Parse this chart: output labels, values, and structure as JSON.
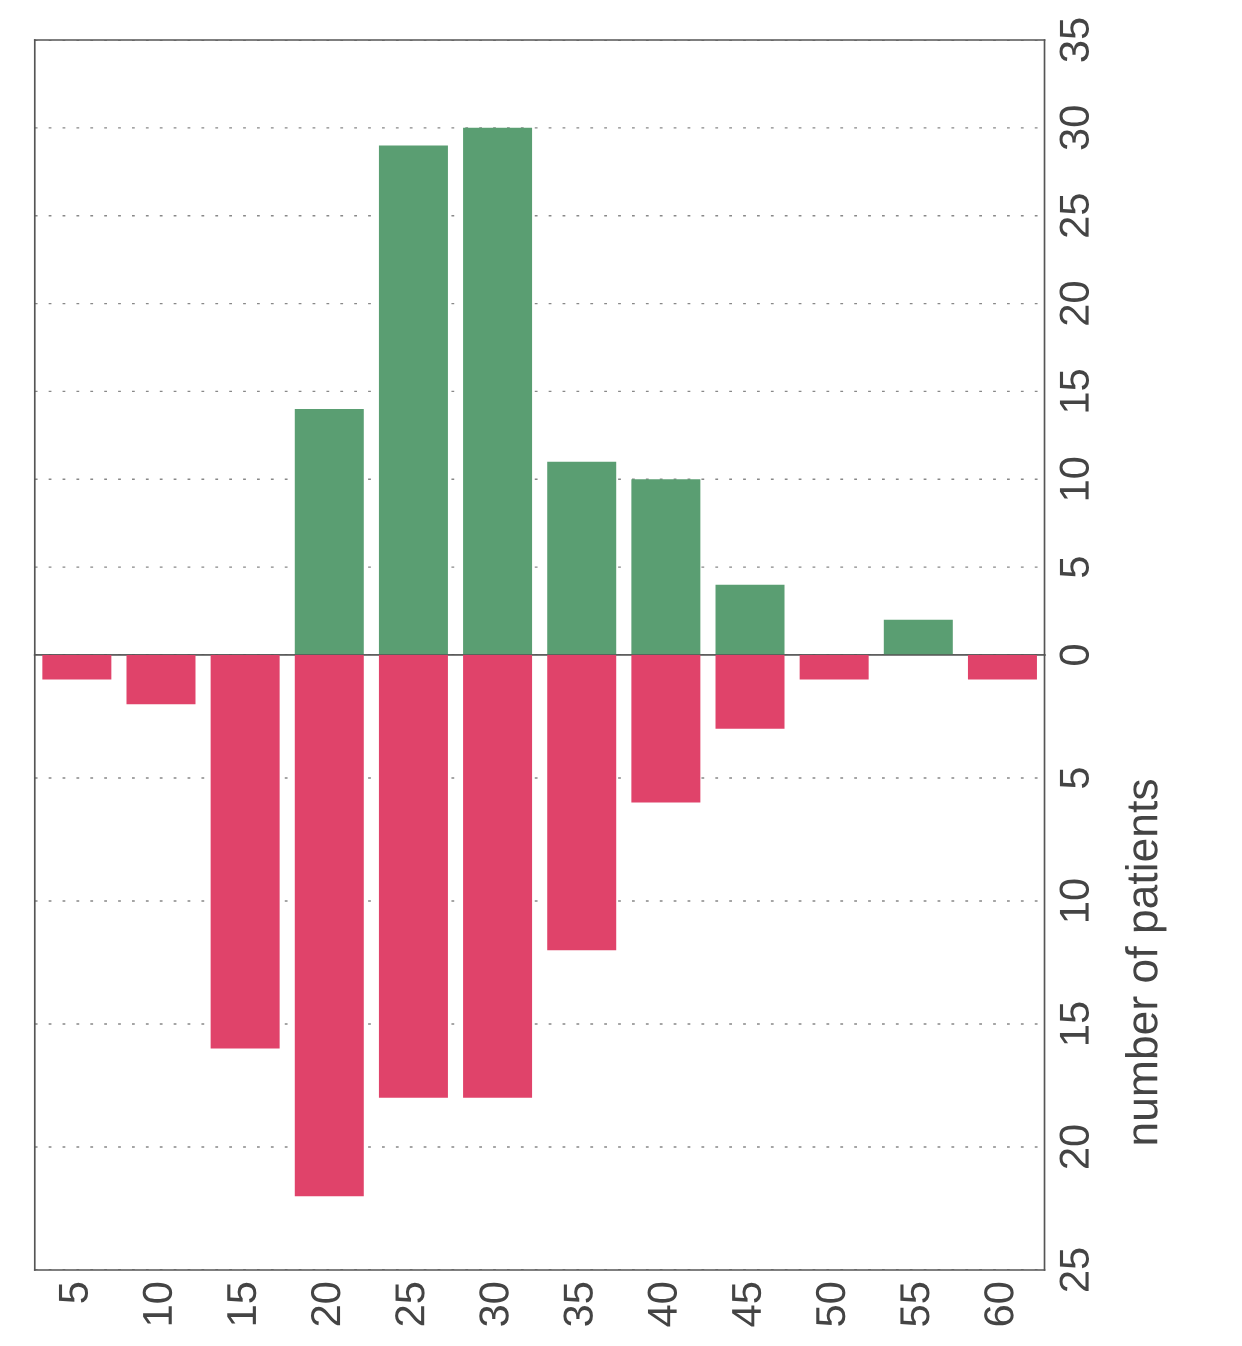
{
  "chart_data": [
    {
      "type": "bar",
      "categories": [
        "5",
        "10",
        "15",
        "20",
        "25",
        "30",
        "35",
        "40",
        "45",
        "50",
        "55",
        "60"
      ],
      "values": [
        null,
        null,
        null,
        14,
        29,
        30,
        11,
        10,
        4,
        null,
        2,
        null
      ],
      "color": "#5a9e72",
      "ylim": [
        0,
        35
      ],
      "yticks": [
        0,
        5,
        10,
        15,
        20,
        25,
        30,
        35
      ],
      "grid": "y",
      "tick_labels": "y"
    },
    {
      "type": "bar",
      "categories": [
        "5",
        "10",
        "15",
        "20",
        "25",
        "30",
        "35",
        "40",
        "45",
        "50",
        "55",
        "60"
      ],
      "values": [
        1,
        2,
        16,
        22,
        18,
        18,
        12,
        6,
        3,
        1,
        0,
        1
      ],
      "color": "#e0436a",
      "ylim": [
        25,
        0
      ],
      "yticks": [
        5,
        10,
        15,
        20,
        25
      ],
      "grid": "y",
      "ylabel": "number of patients"
    }
  ]
}
